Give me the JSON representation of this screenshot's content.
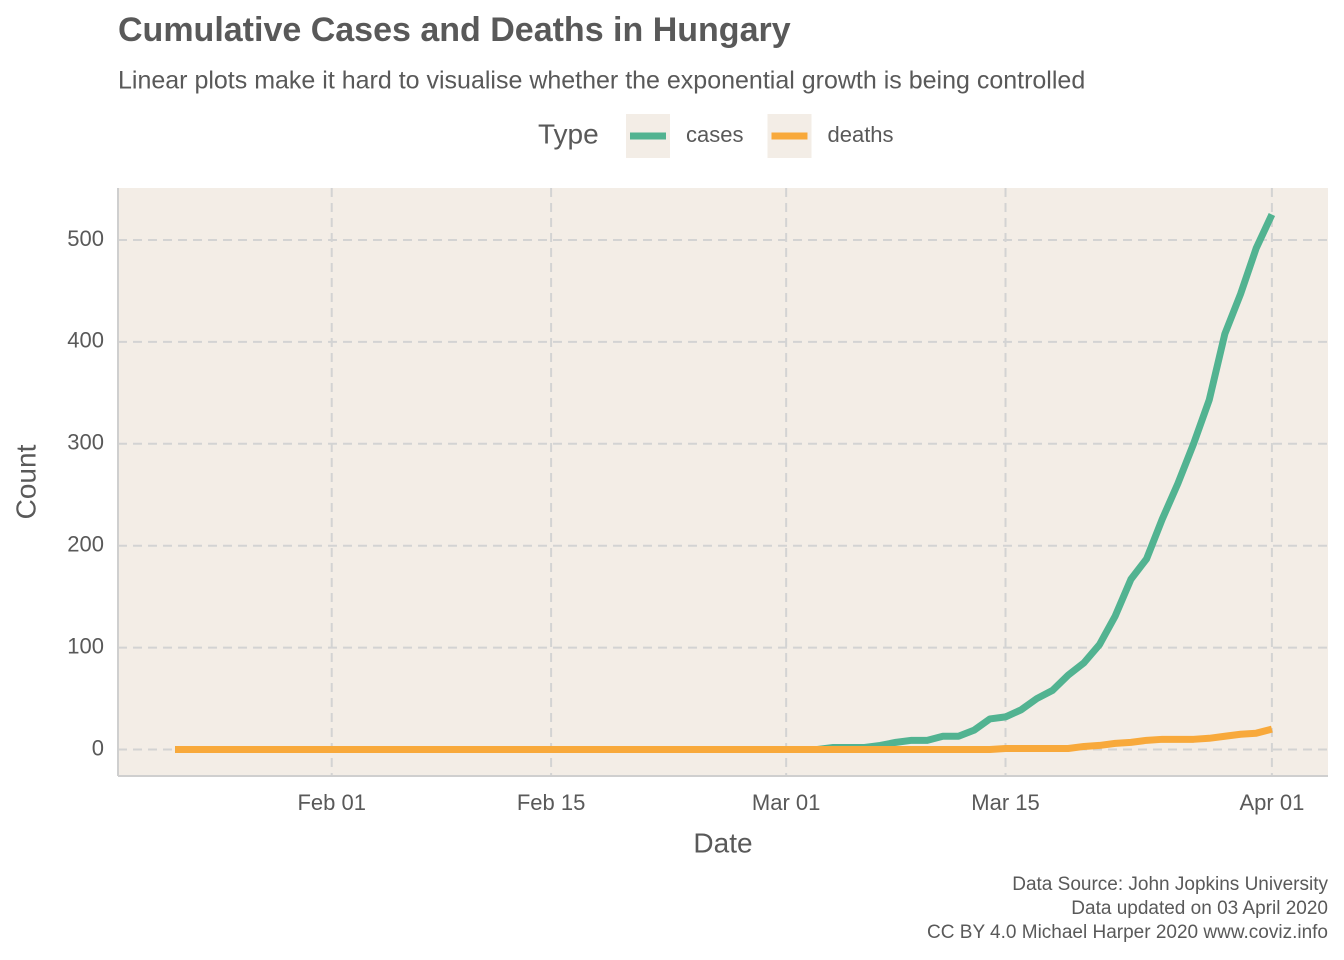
{
  "chart_data": {
    "type": "line",
    "title": "Cumulative Cases and Deaths in Hungary",
    "subtitle": "Linear plots make it hard to visualise whether the exponential growth is being controlled",
    "x_label": "Date",
    "y_label": "Count",
    "legend_title": "Type",
    "legend_position": "top",
    "caption": [
      "Data Source: John Jopkins University",
      "Data updated on 03 April 2020",
      "CC BY 4.0 Michael Harper 2020 www.coviz.info"
    ],
    "x": [
      "Jan 22",
      "Jan 23",
      "Jan 24",
      "Jan 25",
      "Jan 26",
      "Jan 27",
      "Jan 28",
      "Jan 29",
      "Jan 30",
      "Jan 31",
      "Feb 01",
      "Feb 02",
      "Feb 03",
      "Feb 04",
      "Feb 05",
      "Feb 06",
      "Feb 07",
      "Feb 08",
      "Feb 09",
      "Feb 10",
      "Feb 11",
      "Feb 12",
      "Feb 13",
      "Feb 14",
      "Feb 15",
      "Feb 16",
      "Feb 17",
      "Feb 18",
      "Feb 19",
      "Feb 20",
      "Feb 21",
      "Feb 22",
      "Feb 23",
      "Feb 24",
      "Feb 25",
      "Feb 26",
      "Feb 27",
      "Feb 28",
      "Feb 29",
      "Mar 01",
      "Mar 02",
      "Mar 03",
      "Mar 04",
      "Mar 05",
      "Mar 06",
      "Mar 07",
      "Mar 08",
      "Mar 09",
      "Mar 10",
      "Mar 11",
      "Mar 12",
      "Mar 13",
      "Mar 14",
      "Mar 15",
      "Mar 16",
      "Mar 17",
      "Mar 18",
      "Mar 19",
      "Mar 20",
      "Mar 21",
      "Mar 22",
      "Mar 23",
      "Mar 24",
      "Mar 25",
      "Mar 26",
      "Mar 27",
      "Mar 28",
      "Mar 29",
      "Mar 30",
      "Mar 31",
      "Apr 01"
    ],
    "series": [
      {
        "name": "cases",
        "color": "#52b391",
        "values": [
          0,
          0,
          0,
          0,
          0,
          0,
          0,
          0,
          0,
          0,
          0,
          0,
          0,
          0,
          0,
          0,
          0,
          0,
          0,
          0,
          0,
          0,
          0,
          0,
          0,
          0,
          0,
          0,
          0,
          0,
          0,
          0,
          0,
          0,
          0,
          0,
          0,
          0,
          0,
          0,
          0,
          0,
          2,
          2,
          2,
          4,
          7,
          9,
          9,
          13,
          13,
          19,
          30,
          32,
          39,
          50,
          58,
          73,
          85,
          103,
          131,
          167,
          187,
          226,
          261,
          300,
          343,
          408,
          447,
          492,
          525
        ]
      },
      {
        "name": "deaths",
        "color": "#f8a93b",
        "values": [
          0,
          0,
          0,
          0,
          0,
          0,
          0,
          0,
          0,
          0,
          0,
          0,
          0,
          0,
          0,
          0,
          0,
          0,
          0,
          0,
          0,
          0,
          0,
          0,
          0,
          0,
          0,
          0,
          0,
          0,
          0,
          0,
          0,
          0,
          0,
          0,
          0,
          0,
          0,
          0,
          0,
          0,
          0,
          0,
          0,
          0,
          0,
          0,
          0,
          0,
          0,
          0,
          0,
          1,
          1,
          1,
          1,
          1,
          3,
          4,
          6,
          7,
          9,
          10,
          10,
          10,
          11,
          13,
          15,
          16,
          20
        ]
      }
    ],
    "xticks": [
      "Feb 01",
      "Feb 15",
      "Mar 01",
      "Mar 15",
      "Apr 01"
    ],
    "ylim": [
      -26,
      551
    ],
    "yticks": [
      0,
      100,
      200,
      300,
      400,
      500
    ],
    "grid": true
  }
}
